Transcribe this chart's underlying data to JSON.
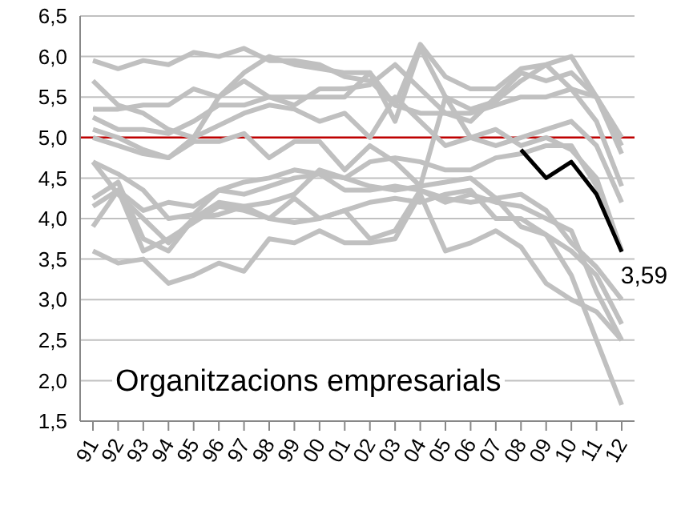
{
  "chart_data": {
    "type": "line",
    "categories": [
      "91",
      "92",
      "93",
      "94",
      "95",
      "96",
      "97",
      "98",
      "99",
      "00",
      "01",
      "02",
      "03",
      "04",
      "05",
      "06",
      "07",
      "08",
      "09",
      "10",
      "11",
      "12"
    ],
    "ylim": [
      1.5,
      6.5
    ],
    "yticks": [
      {
        "value": 1.5,
        "label": "1,5"
      },
      {
        "value": 2,
        "label": "2,0"
      },
      {
        "value": 2.5,
        "label": "2,5"
      },
      {
        "value": 3,
        "label": "3,0"
      },
      {
        "value": 3.5,
        "label": "3,5"
      },
      {
        "value": 4,
        "label": "4,0"
      },
      {
        "value": 4.5,
        "label": "4,5"
      },
      {
        "value": 5,
        "label": "5,0"
      },
      {
        "value": 5.5,
        "label": "5,5"
      },
      {
        "value": 6,
        "label": "6,0"
      },
      {
        "value": 6.5,
        "label": "6,5"
      }
    ],
    "grid": "y",
    "legend": false,
    "marker": "none",
    "line_style": "solid",
    "ref_lines": [
      {
        "axis": "y",
        "value": 5,
        "color": "#c00000"
      }
    ],
    "annotations": [
      "Organitzacions empresarials"
    ],
    "series": [
      {
        "color": "#c0c0c0",
        "values": [
          5.95,
          5.85,
          5.95,
          5.9,
          6.05,
          6.0,
          6.1,
          5.95,
          5.95,
          5.9,
          5.75,
          5.7,
          5.4,
          6.15,
          5.75,
          5.6,
          5.6,
          5.85,
          5.9,
          6.0,
          5.5,
          5.0
        ]
      },
      {
        "color": "#c0c0c0",
        "values": [
          5.7,
          5.4,
          5.3,
          5.1,
          5.0,
          5.5,
          5.8,
          6.0,
          5.9,
          5.85,
          5.8,
          5.8,
          5.4,
          5.3,
          5.3,
          5.2,
          5.5,
          5.8,
          5.7,
          5.8,
          5.5,
          4.8
        ]
      },
      {
        "color": "#c0c0c0",
        "values": [
          5.35,
          5.35,
          5.4,
          5.4,
          5.6,
          5.5,
          5.7,
          5.5,
          5.4,
          5.6,
          5.6,
          5.65,
          5.9,
          5.6,
          5.3,
          5.3,
          5.4,
          5.5,
          5.5,
          5.6,
          5.5,
          4.9
        ]
      },
      {
        "color": "#c0c0c0",
        "values": [
          5.25,
          5.1,
          5.1,
          5.05,
          5.2,
          5.4,
          5.4,
          5.5,
          5.5,
          5.5,
          5.5,
          5.8,
          5.2,
          6.1,
          5.5,
          5.35,
          5.45,
          5.7,
          5.9,
          5.6,
          5.2,
          4.4
        ]
      },
      {
        "color": "#c0c0c0",
        "values": [
          5.0,
          4.9,
          4.8,
          4.75,
          5.0,
          5.15,
          5.3,
          5.4,
          5.35,
          5.2,
          5.3,
          5.0,
          5.5,
          5.2,
          4.9,
          5.0,
          4.9,
          5.0,
          5.1,
          5.2,
          4.9,
          4.2
        ]
      },
      {
        "color": "#c0c0c0",
        "values": [
          5.1,
          5.0,
          4.85,
          4.75,
          4.95,
          4.95,
          5.05,
          4.75,
          4.95,
          4.95,
          4.6,
          4.9,
          4.7,
          4.4,
          5.5,
          5.0,
          5.1,
          4.9,
          5.0,
          4.85,
          4.5,
          3.6
        ]
      },
      {
        "color": "#c0c0c0",
        "values": [
          4.7,
          4.55,
          4.35,
          4.0,
          4.05,
          4.35,
          4.45,
          4.5,
          4.6,
          4.55,
          4.5,
          4.7,
          4.75,
          4.7,
          4.6,
          4.6,
          4.75,
          4.8,
          4.9,
          4.9,
          4.4,
          3.6
        ]
      },
      {
        "color": "#c0c0c0",
        "values": [
          4.7,
          4.3,
          4.0,
          3.7,
          4.0,
          4.05,
          4.15,
          4.2,
          4.3,
          4.6,
          4.5,
          4.4,
          4.35,
          4.4,
          4.45,
          4.5,
          4.25,
          4.3,
          4.1,
          3.7,
          3.4,
          3.0
        ]
      },
      {
        "color": "#c0c0c0",
        "values": [
          4.15,
          4.35,
          4.1,
          4.2,
          4.15,
          4.35,
          4.3,
          4.4,
          4.5,
          4.55,
          4.35,
          4.35,
          4.4,
          4.35,
          4.2,
          4.3,
          4.2,
          4.15,
          4.0,
          3.85,
          3.1,
          2.5
        ]
      },
      {
        "color": "#c0c0c0",
        "values": [
          4.25,
          4.45,
          3.75,
          3.6,
          4.0,
          4.2,
          4.15,
          4.0,
          4.25,
          4.0,
          4.1,
          4.2,
          4.25,
          4.2,
          4.3,
          4.35,
          4.0,
          4.0,
          3.8,
          3.6,
          3.3,
          2.7
        ]
      },
      {
        "color": "#c0c0c0",
        "values": [
          3.9,
          4.35,
          3.6,
          3.75,
          3.95,
          4.15,
          4.1,
          4.0,
          3.95,
          4.0,
          4.1,
          3.75,
          3.85,
          4.35,
          4.25,
          4.2,
          4.25,
          3.9,
          3.8,
          3.3,
          2.5,
          1.7
        ]
      },
      {
        "color": "#c0c0c0",
        "values": [
          3.6,
          3.45,
          3.5,
          3.2,
          3.3,
          3.45,
          3.35,
          3.75,
          3.7,
          3.85,
          3.7,
          3.7,
          3.75,
          4.3,
          3.6,
          3.7,
          3.85,
          3.65,
          3.2,
          3.0,
          2.85,
          2.5
        ]
      },
      {
        "color": "#000000",
        "values": [
          null,
          null,
          null,
          null,
          null,
          null,
          null,
          null,
          null,
          null,
          null,
          null,
          null,
          null,
          null,
          null,
          null,
          4.85,
          4.5,
          4.7,
          4.3,
          3.59
        ],
        "value_labels": [
          null,
          null,
          null,
          null,
          null,
          null,
          null,
          null,
          null,
          null,
          null,
          null,
          null,
          null,
          null,
          null,
          null,
          null,
          null,
          null,
          null,
          "3,59"
        ]
      }
    ]
  }
}
